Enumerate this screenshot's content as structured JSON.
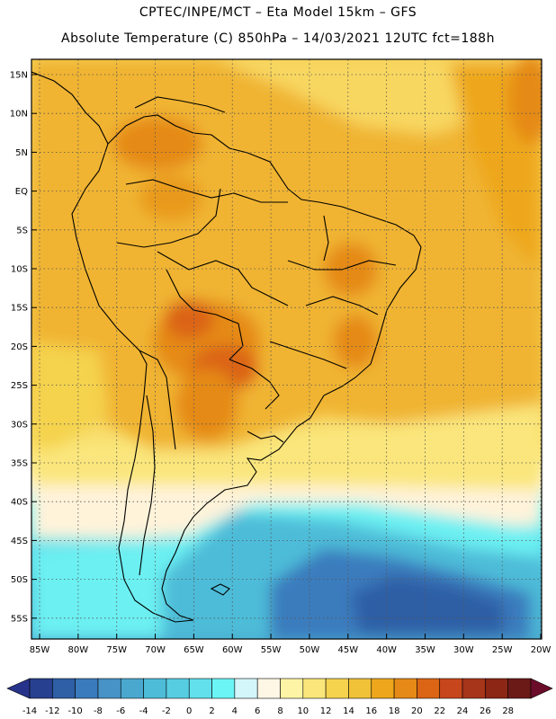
{
  "header": {
    "line1": "CPTEC/INPE/MCT –   Eta Model 15km – GFS",
    "line2": "Absolute Temperature (C) 850hPa – 14/03/2021 12UTC fct=188h"
  },
  "axes": {
    "lat_labels": [
      "15N",
      "10N",
      "5N",
      "EQ",
      "5S",
      "10S",
      "15S",
      "20S",
      "25S",
      "30S",
      "35S",
      "40S",
      "45S",
      "50S",
      "55S"
    ],
    "lon_labels": [
      "85W",
      "80W",
      "75W",
      "70W",
      "65W",
      "60W",
      "55W",
      "50W",
      "45W",
      "40W",
      "35W",
      "30W",
      "25W",
      "20W"
    ]
  },
  "colorbar": {
    "ticks": [
      "-14",
      "-12",
      "-10",
      "-8",
      "-6",
      "-4",
      "-2",
      "0",
      "2",
      "4",
      "6",
      "8",
      "10",
      "12",
      "14",
      "16",
      "18",
      "20",
      "22",
      "24",
      "26",
      "28"
    ],
    "colors": [
      "#27408f",
      "#2f5fa5",
      "#3a7bbd",
      "#4792c6",
      "#4aa8cf",
      "#4dbcd8",
      "#57cde2",
      "#62e0ec",
      "#6cf5f5",
      "#d3f6fa",
      "#fff7e6",
      "#fdf5a5",
      "#fae67b",
      "#f5d34d",
      "#f0c238",
      "#eea71c",
      "#e58a16",
      "#db6415",
      "#c8461b",
      "#a6351a",
      "#8c2615",
      "#6b1a18"
    ],
    "under_color": "#27338a",
    "over_color": "#6b0d2a"
  }
}
